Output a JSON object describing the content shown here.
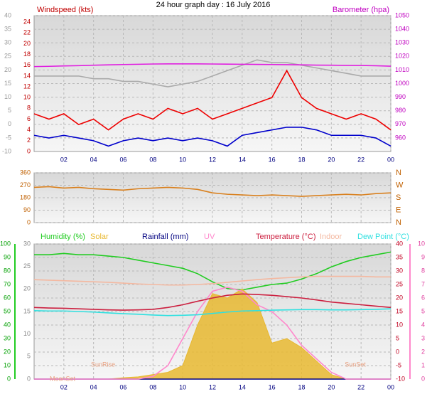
{
  "chart_data": [
    {
      "type": "line",
      "title": "24 hour graph day : 16 July 2016",
      "y_label": "Windspeed (kts)",
      "y2_label": "Barometer (hpa)",
      "x": [
        0,
        1,
        2,
        3,
        4,
        5,
        6,
        7,
        8,
        9,
        10,
        11,
        12,
        13,
        14,
        15,
        16,
        17,
        18,
        19,
        20,
        21,
        22,
        23,
        24
      ],
      "xlim": [
        0,
        24
      ],
      "xticks": [
        {
          "value": 2,
          "label": "02"
        },
        {
          "value": 4,
          "label": "04"
        },
        {
          "value": 6,
          "label": "06"
        },
        {
          "value": 8,
          "label": "08"
        },
        10,
        12,
        14,
        16,
        18,
        20,
        22,
        {
          "value": 24,
          "label": "00"
        }
      ],
      "ylim": [
        0,
        25.2
      ],
      "yticks": [
        0,
        2,
        4,
        6,
        8,
        10,
        12,
        14,
        16,
        18,
        20,
        22,
        24
      ],
      "y2lim": [
        950,
        1050
      ],
      "y2ticks": [
        960,
        970,
        980,
        990,
        1000,
        1010,
        1020,
        1030,
        1040,
        1050
      ],
      "y3lim": [
        -10,
        40
      ],
      "y3ticks": [
        -10,
        -5,
        0,
        5,
        10,
        15,
        20,
        25,
        30,
        35,
        40
      ],
      "grid": true,
      "series": [
        {
          "color": "#aaaaaa",
          "axis": "y",
          "values": [
            14,
            14,
            14,
            14,
            13.5,
            13.5,
            13,
            13,
            12.5,
            12,
            12.5,
            13,
            14,
            15,
            16,
            17,
            16.5,
            16.5,
            16,
            15.5,
            15,
            14.5,
            14,
            14,
            14
          ]
        },
        {
          "color": "#ee0000",
          "axis": "y",
          "values": [
            7,
            6,
            7,
            5,
            6,
            4,
            6,
            7,
            6,
            8,
            7,
            8,
            6,
            7,
            8,
            9,
            10,
            15,
            10,
            8,
            7,
            6,
            7,
            6,
            4
          ]
        },
        {
          "color": "#0000cc",
          "axis": "y",
          "values": [
            3,
            2.5,
            3,
            2.5,
            2,
            1,
            2,
            2.5,
            2,
            2.5,
            2,
            2.5,
            2,
            1,
            3,
            3.5,
            4,
            4.5,
            4.5,
            4,
            3,
            3,
            3,
            2.5,
            1
          ]
        },
        {
          "color": "#e020e0",
          "axis": "y2",
          "values": [
            1012.5,
            1012.7,
            1013,
            1013.2,
            1013.5,
            1013.8,
            1014,
            1014.2,
            1014.4,
            1014.5,
            1014.5,
            1014.5,
            1014.4,
            1014.3,
            1014.2,
            1014.1,
            1014,
            1013.9,
            1013.8,
            1013.6,
            1013.5,
            1013.4,
            1013.3,
            1013.1,
            1012.8
          ]
        }
      ]
    },
    {
      "type": "line",
      "x": [
        0,
        1,
        2,
        3,
        4,
        5,
        6,
        7,
        8,
        9,
        10,
        11,
        12,
        13,
        14,
        15,
        16,
        17,
        18,
        19,
        20,
        21,
        22,
        23,
        24
      ],
      "xlim": [
        0,
        24
      ],
      "xticks": [
        2,
        4,
        6,
        8,
        10,
        12,
        14,
        16,
        18,
        20,
        22,
        24
      ],
      "ylim": [
        0,
        360
      ],
      "yticks": [
        0,
        90,
        180,
        270,
        360
      ],
      "y2lim": [
        0,
        360
      ],
      "y2ticks": [
        {
          "value": 0,
          "label": "N"
        },
        {
          "value": 90,
          "label": "E"
        },
        {
          "value": 180,
          "label": "S"
        },
        {
          "value": 270,
          "label": "W"
        },
        {
          "value": 360,
          "label": "N"
        }
      ],
      "grid": true,
      "series": [
        {
          "color": "#d9801e",
          "axis": "y",
          "values": [
            255,
            260,
            250,
            255,
            245,
            240,
            235,
            245,
            250,
            255,
            250,
            240,
            215,
            205,
            200,
            195,
            200,
            195,
            190,
            195,
            200,
            205,
            200,
            210,
            215
          ]
        }
      ]
    },
    {
      "type": "line",
      "x": [
        0,
        1,
        2,
        3,
        4,
        5,
        6,
        7,
        8,
        9,
        10,
        11,
        12,
        13,
        14,
        15,
        16,
        17,
        18,
        19,
        20,
        21,
        22,
        23,
        24
      ],
      "xlim": [
        0,
        24
      ],
      "xticks": [
        {
          "value": 2,
          "label": "02"
        },
        {
          "value": 4,
          "label": "04"
        },
        {
          "value": 6,
          "label": "06"
        },
        {
          "value": 8,
          "label": "08"
        },
        10,
        12,
        14,
        16,
        18,
        20,
        22,
        {
          "value": 24,
          "label": "00"
        }
      ],
      "annotations": [
        "SunRise",
        "SunSet",
        "MoonSet"
      ],
      "ylim": [
        0,
        100
      ],
      "yticks": [
        0,
        10,
        20,
        30,
        40,
        50,
        60,
        70,
        80,
        90,
        100
      ],
      "y2lim": [
        -10,
        40
      ],
      "y2ticks": [
        -10,
        -5,
        0,
        5,
        10,
        15,
        20,
        25,
        30,
        35,
        40
      ],
      "y3lim": [
        0,
        30
      ],
      "y3ticks": [
        0,
        5,
        10,
        15,
        20,
        25,
        30
      ],
      "y4lim": [
        0,
        10
      ],
      "y4ticks": [
        0,
        1,
        2,
        3,
        4,
        5,
        6,
        7,
        8,
        9,
        10
      ],
      "grid": true,
      "series": [
        {
          "name": "Humidity (%)",
          "color": "#22cc22",
          "axis": "y",
          "values": [
            92,
            92,
            93,
            92,
            92,
            91,
            90,
            88,
            86,
            84,
            82,
            78,
            72,
            67,
            66,
            68,
            70,
            71,
            74,
            78,
            83,
            87,
            90,
            92,
            94
          ]
        },
        {
          "name": "Solar",
          "color": "#e8b830",
          "axis": "y3",
          "area": true,
          "values": [
            0,
            0,
            0,
            0,
            0,
            0,
            0.3,
            0.5,
            1,
            1.5,
            3,
            12,
            19,
            18,
            20,
            17,
            8,
            9,
            7,
            4,
            1,
            0,
            0,
            0,
            0
          ]
        },
        {
          "name": "Rainfall (mm)",
          "color": "#000080",
          "axis": "y3",
          "values": [
            0,
            0,
            0,
            0,
            0,
            0,
            0,
            0,
            0,
            0,
            0,
            0,
            0,
            0,
            0,
            0,
            0,
            0,
            0,
            0,
            0,
            0,
            0,
            0,
            0
          ]
        },
        {
          "name": "UV",
          "color": "#ff88cc",
          "axis": "y4",
          "values": [
            0,
            0,
            0,
            0,
            0,
            0,
            0,
            0,
            0.2,
            1,
            3,
            5,
            6.5,
            6.8,
            6.5,
            5.5,
            5,
            4,
            2.5,
            1.5,
            0.5,
            0,
            0,
            0,
            0
          ]
        },
        {
          "name": "Temperature (°C)",
          "color": "#cc2040",
          "axis": "y2",
          "values": [
            16.5,
            16.3,
            16.2,
            16,
            15.8,
            15.6,
            15.5,
            15.6,
            15.8,
            16.5,
            17.5,
            18.8,
            20,
            21,
            21.5,
            21.3,
            21,
            20.5,
            20,
            19.3,
            18.5,
            18,
            17.5,
            17,
            16.5
          ]
        },
        {
          "name": "Indoor",
          "color": "#f4b8a0",
          "axis": "y2",
          "values": [
            26.8,
            26.6,
            26.4,
            26.2,
            26,
            25.8,
            25.5,
            25.2,
            25,
            24.8,
            24.8,
            25,
            25.3,
            25.8,
            26.3,
            26.8,
            27.2,
            27.5,
            27.8,
            28,
            28,
            28,
            28,
            27.8,
            27.8
          ]
        },
        {
          "name": "Dew Point (°C)",
          "color": "#30e0e0",
          "axis": "y2",
          "values": [
            15.3,
            15.2,
            15.2,
            15,
            14.8,
            14.5,
            14.2,
            14,
            13.7,
            13.5,
            13.6,
            13.8,
            14.3,
            14.8,
            15.2,
            15.3,
            15.5,
            15.6,
            15.7,
            15.7,
            15.6,
            15.6,
            15.7,
            15.8,
            16
          ]
        }
      ]
    }
  ]
}
